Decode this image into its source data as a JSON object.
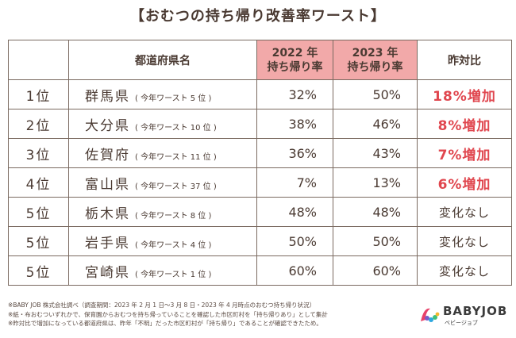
{
  "title": "【おむつの持ち帰り改善率ワースト】",
  "table": {
    "header": {
      "prefecture": "都道府県名",
      "y2022_line1": "2022 年",
      "y2022_line2": "持ち帰り率",
      "y2023_line1": "2023 年",
      "y2023_line2": "持ち帰り率",
      "change": "昨対比"
    },
    "highlight_color": "#f2a9a9",
    "increase_color": "#e0464e",
    "rows": [
      {
        "rank": "1位",
        "prefecture": "群馬県",
        "note": "( 今年ワースト 5 位 )",
        "y2022": "32%",
        "y2023": "50%",
        "change": "18%増加"
      },
      {
        "rank": "2位",
        "prefecture": "大分県",
        "note": "( 今年ワースト 10 位 )",
        "y2022": "38%",
        "y2023": "46%",
        "change": "8%増加"
      },
      {
        "rank": "3位",
        "prefecture": "佐賀府",
        "note": "( 今年ワースト 11 位 )",
        "y2022": "36%",
        "y2023": "43%",
        "change": "7%増加"
      },
      {
        "rank": "4位",
        "prefecture": "富山県",
        "note": "( 今年ワースト 37 位 )",
        "y2022": "7%",
        "y2023": "13%",
        "change": "6%増加"
      },
      {
        "rank": "5位",
        "prefecture": "栃木県",
        "note": "( 今年ワースト 8 位 )",
        "y2022": "48%",
        "y2023": "48%",
        "change": "変化なし"
      },
      {
        "rank": "5位",
        "prefecture": "岩手県",
        "note": "( 今年ワースト 4 位 )",
        "y2022": "50%",
        "y2023": "50%",
        "change": "変化なし"
      },
      {
        "rank": "5位",
        "prefecture": "宮崎県",
        "note": "( 今年ワースト 1 位 )",
        "y2022": "60%",
        "y2023": "60%",
        "change": "変化なし"
      }
    ]
  },
  "notes": [
    "※BABY JOB 株式会社調べ（調査期間：2023 年 2 月 1 日～3 月 8 日・2023 年 4 月時点のおむつ持ち帰り状況）",
    "※紙・布おむついずれかで、保育園からおむつを持ち帰っていることを確認した市区町村を「持ち帰りあり」として集計",
    "※昨対比で増加になっている都道府県は、昨年「不明」だった市区町村が「持ち帰り」であることが確認できたため。"
  ],
  "logo": {
    "name": "BABYJOB",
    "sub": "ベビージョブ"
  }
}
